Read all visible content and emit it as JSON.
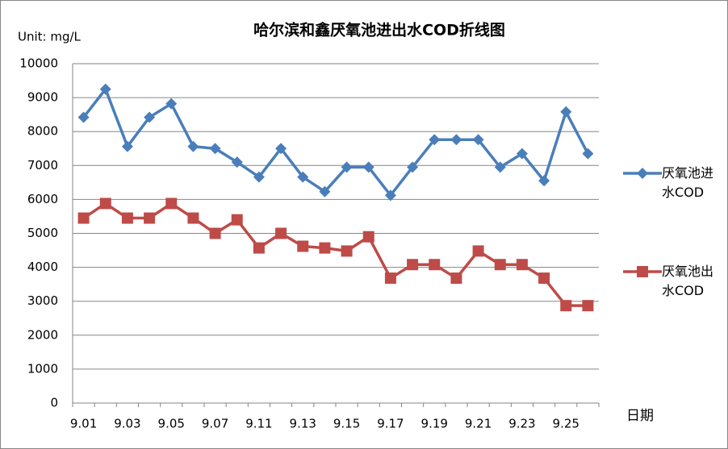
{
  "chart_data": {
    "type": "line",
    "title": "哈尔滨和鑫厌氧池进出水COD折线图",
    "unit_label": "Unit: mg/L",
    "x_label": "日期",
    "categories": [
      "9.01",
      null,
      "9.03",
      null,
      "9.05",
      null,
      "9.07",
      null,
      "9.11",
      null,
      "9.13",
      null,
      "9.15",
      null,
      "9.17",
      null,
      "9.19",
      null,
      "9.21",
      null,
      "9.23",
      null,
      "9.25",
      null
    ],
    "series": [
      {
        "name": "厌氧池进水COD",
        "color": "#4a7ebb",
        "marker": "diamond",
        "values": [
          8420,
          9250,
          7560,
          8420,
          8820,
          7560,
          7500,
          7100,
          6660,
          7500,
          6660,
          6230,
          6950,
          6950,
          6120,
          6950,
          7760,
          7760,
          7760,
          6950,
          7350,
          6550,
          8580,
          7350
        ]
      },
      {
        "name": "厌氧池出水COD",
        "color": "#be4b48",
        "marker": "square",
        "values": [
          5450,
          5880,
          5450,
          5450,
          5880,
          5450,
          5000,
          5400,
          4570,
          5000,
          4620,
          4570,
          4480,
          4900,
          3680,
          4080,
          4080,
          3680,
          4480,
          4080,
          4080,
          3680,
          2870,
          2870
        ]
      }
    ],
    "ylim": [
      0,
      10000
    ],
    "yticks": [
      0,
      1000,
      2000,
      3000,
      4000,
      5000,
      6000,
      7000,
      8000,
      9000,
      10000
    ],
    "grid": true,
    "legend": "right"
  }
}
